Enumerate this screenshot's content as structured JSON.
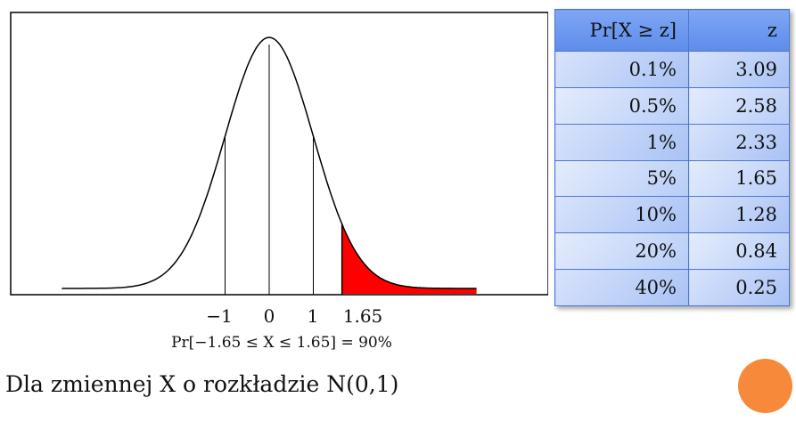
{
  "plot": {
    "tick_labels": [
      "−1",
      "0",
      "1",
      "1.65"
    ],
    "formula": "Pr[−1.65 ≤ X ≤ 1.65] = 90%",
    "colors": {
      "tail_fill": "#ff0000",
      "curve": "#000000"
    }
  },
  "table": {
    "headers": [
      "Pr[X ≥ z]",
      "z"
    ],
    "rows": [
      [
        "0.1%",
        "3.09"
      ],
      [
        "0.5%",
        "2.58"
      ],
      [
        "1%",
        "2.33"
      ],
      [
        "5%",
        "1.65"
      ],
      [
        "10%",
        "1.28"
      ],
      [
        "20%",
        "0.84"
      ],
      [
        "40%",
        "0.25"
      ]
    ],
    "colors": {
      "header": "#6f99f0",
      "cell": "#c3d4f8",
      "border": "#4b77cf"
    }
  },
  "caption": "Dla zmiennej X o rozkładzie N(0,1)",
  "decoration": {
    "circle_color": "#f7893a"
  }
}
